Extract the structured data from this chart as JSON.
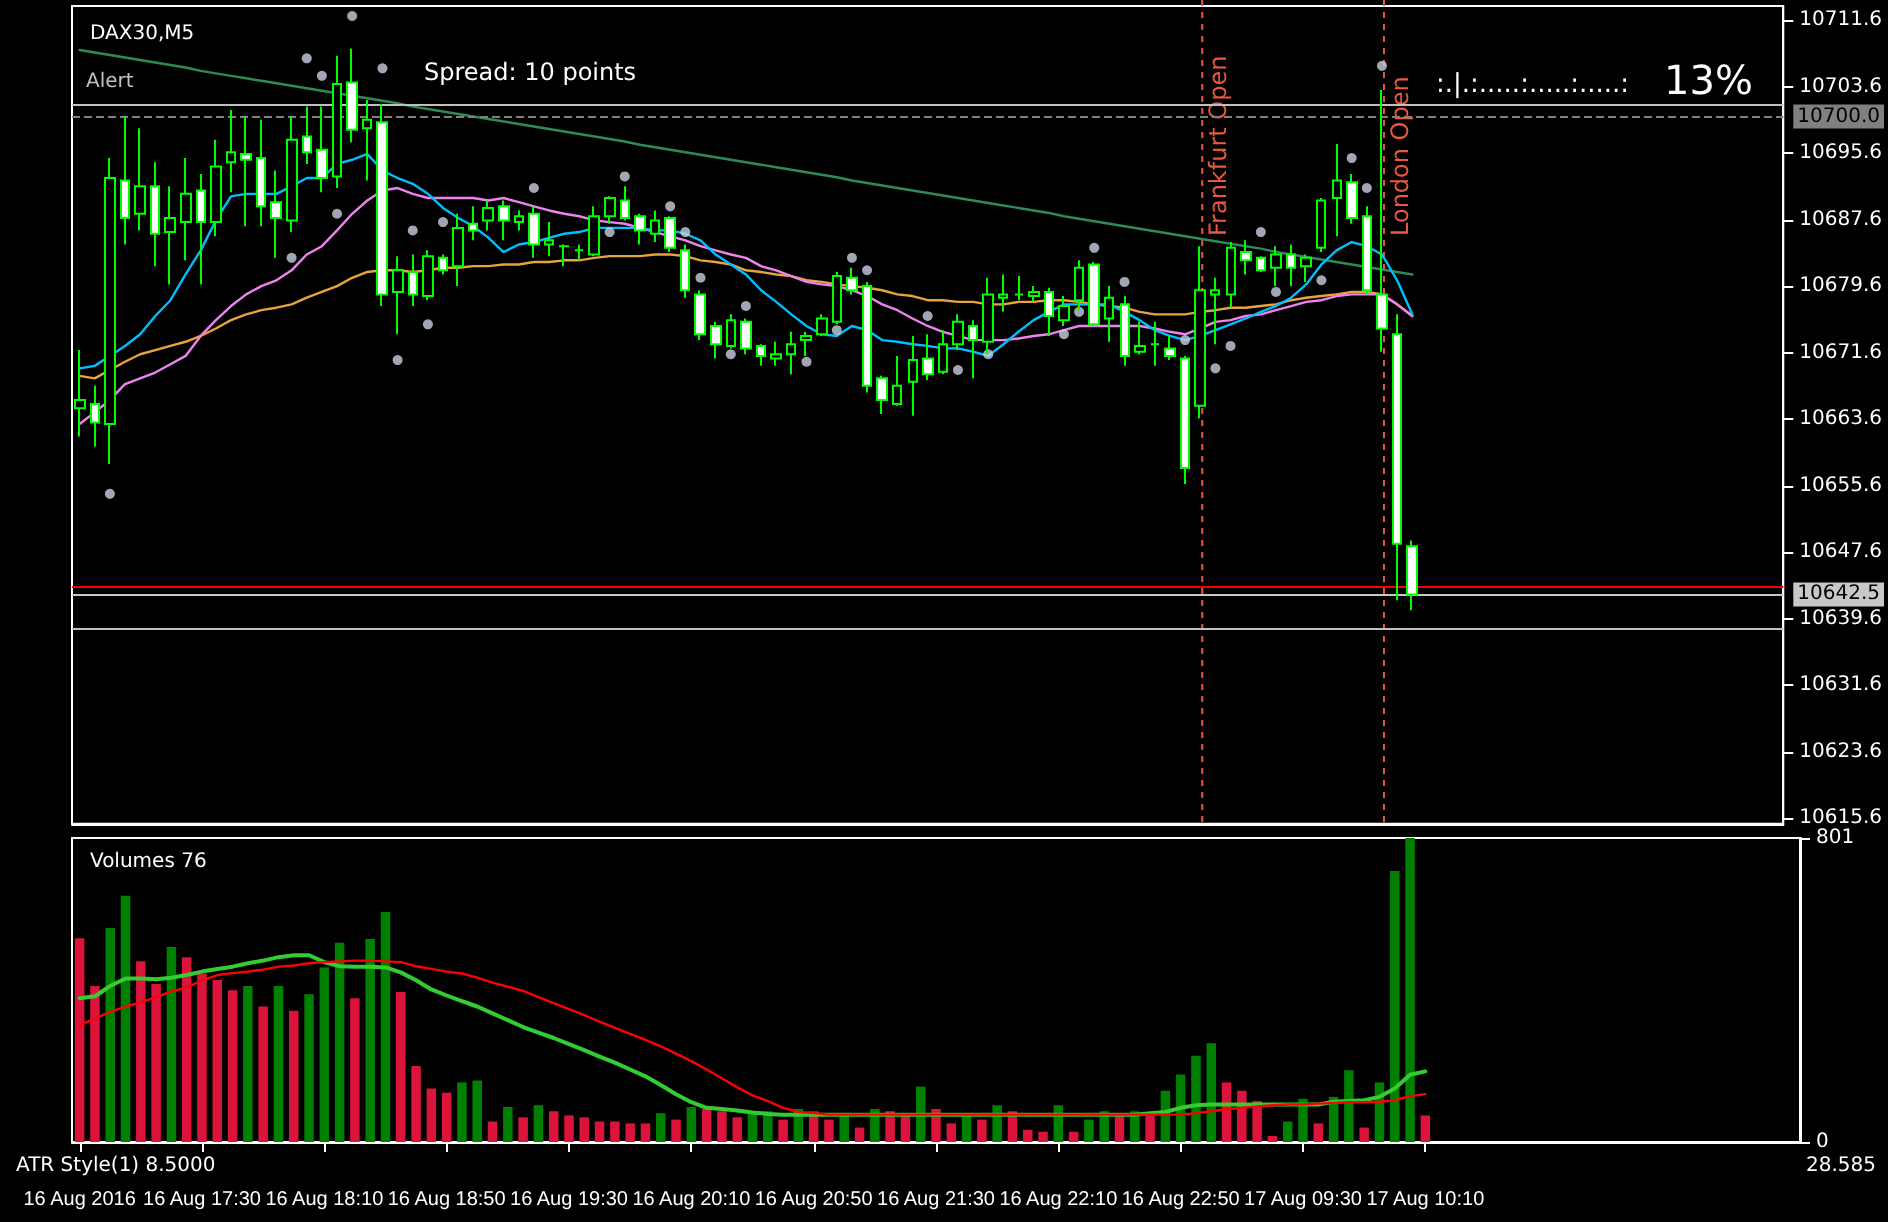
{
  "chart_data": [
    {
      "type": "candlestick",
      "title": "DAX30,M5",
      "color": "#00ff00",
      "tick_labels": "y",
      "categories": [
        null,
        null,
        null,
        null,
        null,
        null,
        null,
        null,
        null,
        null,
        null,
        null,
        null,
        null,
        null,
        null,
        null,
        null,
        null,
        null,
        null,
        null,
        null,
        null,
        null,
        null,
        null,
        null,
        null,
        null,
        null,
        null,
        null,
        null,
        null,
        null,
        null,
        null,
        null,
        null,
        null,
        null,
        null,
        null,
        null,
        null,
        null,
        null,
        null,
        null,
        null,
        null,
        null,
        null,
        null,
        null,
        null,
        null,
        null,
        null,
        null,
        null,
        null,
        null,
        null,
        null,
        null,
        null,
        null,
        null,
        null,
        null,
        null,
        null,
        null,
        null,
        null,
        null,
        null,
        null,
        null,
        null,
        null,
        null,
        null,
        null,
        null,
        null,
        null
      ],
      "ohlc": [
        [
          10664.9,
          10671.9,
          10661.5,
          10665.9
        ],
        [
          10665.4,
          10667.6,
          10660.3,
          10663.2
        ],
        [
          10663.0,
          10695.0,
          10658.2,
          10692.6
        ],
        [
          10692.3,
          10700.0,
          10684.6,
          10687.8
        ],
        [
          10688.3,
          10698.6,
          10686.3,
          10691.6
        ],
        [
          10691.6,
          10694.5,
          10682.0,
          10685.9
        ],
        [
          10686.1,
          10691.6,
          10679.8,
          10687.8
        ],
        [
          10687.3,
          10695.0,
          10682.7,
          10690.7
        ],
        [
          10691.1,
          10693.1,
          10679.8,
          10687.3
        ],
        [
          10687.3,
          10697.2,
          10685.6,
          10694.0
        ],
        [
          10694.5,
          10700.8,
          10690.9,
          10695.7
        ],
        [
          10695.5,
          10700.0,
          10686.8,
          10694.8
        ],
        [
          10695.0,
          10699.6,
          10686.8,
          10689.2
        ],
        [
          10689.7,
          10693.5,
          10683.0,
          10687.8
        ],
        [
          10687.5,
          10700.0,
          10686.1,
          10697.2
        ],
        [
          10697.6,
          10701.2,
          10694.3,
          10695.7
        ],
        [
          10696.0,
          10701.2,
          10690.9,
          10692.6
        ],
        [
          10692.8,
          10707.3,
          10691.4,
          10703.9
        ],
        [
          10704.1,
          10708.2,
          10696.9,
          10698.4
        ],
        [
          10698.6,
          10702.0,
          10692.3,
          10699.6
        ],
        [
          10699.3,
          10701.5,
          10677.2,
          10678.6
        ],
        [
          10678.9,
          10683.2,
          10673.8,
          10681.5
        ],
        [
          10681.3,
          10683.4,
          10677.2,
          10678.6
        ],
        [
          10678.4,
          10683.9,
          10677.9,
          10683.2
        ],
        [
          10683.0,
          10683.4,
          10681.0,
          10681.5
        ],
        [
          10682.0,
          10688.3,
          10679.6,
          10686.6
        ],
        [
          10687.1,
          10689.2,
          10685.1,
          10686.3
        ],
        [
          10687.5,
          10689.9,
          10686.3,
          10689.0
        ],
        [
          10689.2,
          10689.9,
          10685.1,
          10687.5
        ],
        [
          10687.3,
          10688.7,
          10686.3,
          10688.0
        ],
        [
          10688.3,
          10689.2,
          10683.0,
          10684.6
        ],
        [
          10684.6,
          10687.3,
          10683.2,
          10685.1
        ],
        [
          10684.4,
          10684.6,
          10682.0,
          10684.4
        ],
        [
          10683.9,
          10684.6,
          10682.7,
          10683.9
        ],
        [
          10683.4,
          10689.2,
          10683.2,
          10688.0
        ],
        [
          10688.0,
          10690.4,
          10687.1,
          10690.2
        ],
        [
          10689.9,
          10691.6,
          10687.5,
          10687.8
        ],
        [
          10688.0,
          10688.3,
          10684.6,
          10686.3
        ],
        [
          10685.9,
          10688.7,
          10684.9,
          10687.5
        ],
        [
          10687.8,
          10688.0,
          10683.7,
          10684.2
        ],
        [
          10683.9,
          10684.6,
          10678.2,
          10679.1
        ],
        [
          10678.6,
          10679.1,
          10673.1,
          10673.8
        ],
        [
          10674.8,
          10675.3,
          10670.9,
          10672.6
        ],
        [
          10672.4,
          10676.2,
          10672.1,
          10675.5
        ],
        [
          10675.3,
          10675.7,
          10671.4,
          10672.1
        ],
        [
          10672.4,
          10672.6,
          10670.0,
          10671.2
        ],
        [
          10670.9,
          10672.9,
          10670.0,
          10671.4
        ],
        [
          10671.4,
          10674.1,
          10669.0,
          10672.6
        ],
        [
          10673.1,
          10674.1,
          10671.2,
          10673.6
        ],
        [
          10673.8,
          10676.2,
          10673.6,
          10675.7
        ],
        [
          10675.3,
          10681.3,
          10675.0,
          10680.8
        ],
        [
          10680.6,
          10681.8,
          10678.6,
          10679.1
        ],
        [
          10679.6,
          10680.1,
          10666.8,
          10667.6
        ],
        [
          10668.5,
          10668.8,
          10664.2,
          10665.9
        ],
        [
          10665.4,
          10671.2,
          10665.2,
          10667.6
        ],
        [
          10668.1,
          10673.6,
          10664.0,
          10670.7
        ],
        [
          10670.9,
          10673.8,
          10668.3,
          10669.0
        ],
        [
          10669.3,
          10674.3,
          10669.0,
          10672.6
        ],
        [
          10672.6,
          10676.2,
          10671.9,
          10675.3
        ],
        [
          10674.8,
          10675.5,
          10668.5,
          10673.1
        ],
        [
          10672.9,
          10680.6,
          10671.4,
          10678.6
        ],
        [
          10678.2,
          10681.0,
          10676.5,
          10678.6
        ],
        [
          10678.6,
          10680.8,
          10677.9,
          10678.6
        ],
        [
          10678.4,
          10679.6,
          10677.7,
          10678.9
        ],
        [
          10678.9,
          10679.4,
          10673.6,
          10676.0
        ],
        [
          10675.5,
          10678.4,
          10674.8,
          10677.2
        ],
        [
          10677.9,
          10682.7,
          10676.7,
          10681.8
        ],
        [
          10682.2,
          10682.5,
          10674.8,
          10675.0
        ],
        [
          10675.7,
          10679.6,
          10672.9,
          10678.2
        ],
        [
          10677.4,
          10678.4,
          10670.0,
          10671.2
        ],
        [
          10671.7,
          10675.3,
          10671.4,
          10672.4
        ],
        [
          10672.6,
          10675.3,
          10670.0,
          10672.6
        ],
        [
          10672.1,
          10673.6,
          10670.7,
          10671.2
        ],
        [
          10670.9,
          10671.2,
          10655.8,
          10657.7
        ],
        [
          10665.2,
          10684.4,
          10663.7,
          10679.1
        ],
        [
          10678.6,
          10680.6,
          10672.6,
          10679.1
        ],
        [
          10678.6,
          10684.9,
          10677.0,
          10684.2
        ],
        [
          10683.7,
          10685.1,
          10681.0,
          10682.7
        ],
        [
          10683.0,
          10683.2,
          10681.3,
          10681.5
        ],
        [
          10681.8,
          10684.4,
          10679.6,
          10683.4
        ],
        [
          10683.4,
          10684.6,
          10679.6,
          10681.8
        ],
        [
          10682.0,
          10683.4,
          10680.1,
          10683.0
        ],
        [
          10684.2,
          10690.2,
          10683.7,
          10689.9
        ],
        [
          10690.2,
          10696.7,
          10685.6,
          10692.3
        ],
        [
          10692.1,
          10693.1,
          10687.1,
          10687.8
        ],
        [
          10688.0,
          10689.2,
          10678.6,
          10679.1
        ],
        [
          10678.6,
          10703.2,
          10671.7,
          10674.5
        ],
        [
          10673.8,
          10676.2,
          10641.8,
          10648.6
        ],
        [
          10648.3,
          10649.0,
          10640.6,
          10642.5
        ]
      ],
      "series": [
        {
          "type": "line",
          "color": "#2e8b57",
          "values": [
            10708.0,
            10707.7,
            10707.4,
            10707.1,
            10706.8,
            10706.5,
            10706.2,
            10705.9,
            10705.5,
            10705.2,
            10704.9,
            10704.6,
            10704.3,
            10704.0,
            10703.7,
            10703.4,
            10703.1,
            10702.8,
            10702.5,
            10702.2,
            10701.9,
            10701.6,
            10701.2,
            10700.9,
            10700.6,
            10700.3,
            10700.0,
            10699.7,
            10699.4,
            10699.1,
            10698.8,
            10698.5,
            10698.2,
            10697.9,
            10697.6,
            10697.3,
            10697.0,
            10696.6,
            10696.3,
            10696.0,
            10695.7,
            10695.4,
            10695.1,
            10694.8,
            10694.5,
            10694.2,
            10693.9,
            10693.6,
            10693.3,
            10693.0,
            10692.7,
            10692.3,
            10692.0,
            10691.7,
            10691.4,
            10691.1,
            10690.8,
            10690.5,
            10690.2,
            10689.9,
            10689.6,
            10689.3,
            10689.0,
            10688.7,
            10688.4,
            10688.0,
            10687.7,
            10687.4,
            10687.1,
            10686.8,
            10686.5,
            10686.2,
            10685.9,
            10685.6,
            10685.3,
            10685.0,
            10684.7,
            10684.4,
            10684.1,
            10683.7,
            10683.4,
            10683.1,
            10682.8,
            10682.5,
            10682.2,
            10681.9,
            10681.6,
            10681.3,
            10681.0
          ]
        },
        {
          "type": "line",
          "color": "#e8a33c",
          "values": [
            10668.8,
            10668.5,
            10669.5,
            10670.5,
            10671.4,
            10671.9,
            10672.4,
            10672.9,
            10673.6,
            10674.5,
            10675.5,
            10676.2,
            10676.7,
            10677.0,
            10677.4,
            10678.2,
            10678.9,
            10679.6,
            10680.6,
            10681.3,
            10681.5,
            10681.5,
            10681.3,
            10681.5,
            10681.8,
            10681.8,
            10682.0,
            10682.0,
            10682.2,
            10682.2,
            10682.5,
            10682.5,
            10682.7,
            10682.7,
            10683.0,
            10683.2,
            10683.2,
            10683.2,
            10683.4,
            10683.4,
            10683.2,
            10682.7,
            10682.5,
            10682.2,
            10681.5,
            10681.3,
            10681.0,
            10680.8,
            10680.3,
            10680.1,
            10679.8,
            10679.6,
            10679.4,
            10679.1,
            10678.6,
            10678.4,
            10677.9,
            10677.9,
            10677.7,
            10677.7,
            10677.4,
            10677.4,
            10677.7,
            10677.7,
            10677.9,
            10677.9,
            10677.7,
            10677.4,
            10677.2,
            10677.0,
            10676.5,
            10676.2,
            10676.2,
            10676.2,
            10676.5,
            10676.7,
            10677.0,
            10677.0,
            10677.2,
            10677.4,
            10677.9,
            10678.2,
            10678.4,
            10678.6,
            10678.9,
            10678.9,
            10678.6,
            10677.4,
            10676.0
          ]
        },
        {
          "type": "line",
          "color": "#ee82ee",
          "values": [
            10663.0,
            10664.4,
            10665.9,
            10667.8,
            10668.5,
            10669.2,
            10670.2,
            10671.2,
            10673.6,
            10675.5,
            10677.2,
            10678.6,
            10679.6,
            10680.3,
            10681.5,
            10683.4,
            10684.4,
            10686.3,
            10688.3,
            10689.9,
            10691.1,
            10691.4,
            10690.7,
            10690.2,
            10690.2,
            10690.2,
            10690.2,
            10689.9,
            10690.2,
            10689.7,
            10689.2,
            10688.7,
            10688.3,
            10688.0,
            10687.5,
            10687.3,
            10687.1,
            10686.6,
            10686.1,
            10685.6,
            10685.1,
            10684.4,
            10683.9,
            10683.4,
            10683.0,
            10682.0,
            10681.5,
            10680.8,
            10680.1,
            10679.8,
            10679.6,
            10679.1,
            10678.4,
            10677.4,
            10676.7,
            10675.7,
            10674.8,
            10674.1,
            10673.6,
            10673.1,
            10673.1,
            10673.1,
            10673.3,
            10673.6,
            10673.8,
            10674.3,
            10674.8,
            10674.8,
            10674.8,
            10674.8,
            10674.8,
            10674.5,
            10674.1,
            10673.8,
            10674.5,
            10675.3,
            10675.5,
            10676.0,
            10676.2,
            10676.7,
            10677.2,
            10677.7,
            10677.9,
            10678.4,
            10678.6,
            10678.6,
            10678.6,
            10677.4,
            10676.0
          ]
        },
        {
          "type": "line",
          "color": "#00bfff",
          "values": [
            10669.7,
            10670.0,
            10671.2,
            10672.4,
            10673.8,
            10676.0,
            10677.9,
            10681.0,
            10683.9,
            10687.5,
            10690.4,
            10690.7,
            10690.7,
            10690.7,
            10691.6,
            10692.6,
            10692.6,
            10694.3,
            10694.8,
            10695.5,
            10693.5,
            10692.6,
            10691.9,
            10690.7,
            10689.0,
            10687.8,
            10686.8,
            10685.4,
            10683.7,
            10684.6,
            10684.9,
            10685.4,
            10685.9,
            10686.1,
            10686.6,
            10686.6,
            10686.6,
            10686.6,
            10686.3,
            10686.3,
            10685.9,
            10685.1,
            10683.4,
            10682.2,
            10681.0,
            10679.1,
            10677.7,
            10676.2,
            10674.8,
            10673.8,
            10673.6,
            10674.8,
            10674.3,
            10673.1,
            10672.9,
            10672.6,
            10672.4,
            10672.1,
            10672.1,
            10671.7,
            10671.2,
            10672.6,
            10674.1,
            10675.5,
            10676.5,
            10677.4,
            10677.4,
            10677.4,
            10677.4,
            10676.5,
            10675.5,
            10674.3,
            10673.6,
            10673.1,
            10673.6,
            10674.3,
            10675.0,
            10675.7,
            10676.5,
            10677.2,
            10678.2,
            10679.8,
            10682.2,
            10683.9,
            10684.9,
            10684.4,
            10683.4,
            10680.3,
            10676.2
          ]
        },
        {
          "type": "scatter",
          "marker": "circle",
          "color": "#c8d0e0",
          "values": [
            null,
            null,
            10654.6,
            null,
            null,
            null,
            null,
            null,
            null,
            null,
            null,
            null,
            null,
            null,
            10683.0,
            10707.0,
            10704.9,
            10688.3,
            10712.1,
            null,
            10705.8,
            10670.7,
            10686.3,
            10675.0,
            10687.3,
            null,
            null,
            null,
            null,
            null,
            10691.4,
            null,
            null,
            null,
            null,
            10686.1,
            10692.8,
            null,
            null,
            10689.2,
            10686.1,
            10680.6,
            null,
            10671.4,
            10677.2,
            null,
            null,
            null,
            10670.5,
            null,
            10674.3,
            10683.0,
            10681.5,
            null,
            null,
            null,
            10676.0,
            null,
            10669.5,
            null,
            10671.4,
            null,
            null,
            null,
            null,
            10673.8,
            10676.5,
            10684.2,
            null,
            10680.1,
            null,
            null,
            null,
            10673.1,
            null,
            10669.7,
            10672.4,
            null,
            10686.1,
            10678.9,
            null,
            null,
            10680.3,
            null,
            10695.0,
            10691.4,
            10706.1,
            null,
            null
          ]
        }
      ],
      "ylim": [
        10614.9,
        10713.3
      ],
      "yticks": [
        10615.6,
        10623.6,
        10631.6,
        10639.6,
        10647.6,
        10655.6,
        10663.6,
        10671.6,
        10679.6,
        10687.6,
        10695.6,
        10703.6,
        10711.6
      ],
      "ref_lines": [
        {
          "axis": "y",
          "value": 10701.5,
          "label": "Alert",
          "color": "#c0c0c0",
          "line_style": "solid"
        },
        {
          "axis": "y",
          "value": 10700.0,
          "label": "10700.0",
          "color": "#808080",
          "line_style": "dashed"
        },
        {
          "axis": "y",
          "value": 10643.5,
          "color": "#ff0000",
          "line_style": "solid"
        },
        {
          "axis": "y",
          "value": 10642.5,
          "label": "10642.5",
          "color": "#c8c8c8",
          "line_style": "solid"
        },
        {
          "axis": "y",
          "value": 10638.5,
          "color": "#c0c0c0",
          "line_style": "solid"
        }
      ],
      "annotations": [
        "Spread: 10 points",
        "Frankfurt Open",
        "London Open",
        ":.|.:.....:.....:.....:",
        "13%"
      ]
    },
    {
      "type": "bar",
      "title": "Volumes 76",
      "categories": [
        "16 Aug 2016",
        null,
        null,
        null,
        null,
        null,
        null,
        null,
        "16 Aug 17:30",
        null,
        null,
        null,
        null,
        null,
        null,
        null,
        "16 Aug 18:10",
        null,
        null,
        null,
        null,
        null,
        null,
        null,
        "16 Aug 18:50",
        null,
        null,
        null,
        null,
        null,
        null,
        null,
        "16 Aug 19:30",
        null,
        null,
        null,
        null,
        null,
        null,
        null,
        "16 Aug 20:10",
        null,
        null,
        null,
        null,
        null,
        null,
        null,
        "16 Aug 20:50",
        null,
        null,
        null,
        null,
        null,
        null,
        null,
        "16 Aug 21:30",
        null,
        null,
        null,
        null,
        null,
        null,
        null,
        "16 Aug 22:10",
        null,
        null,
        null,
        null,
        null,
        null,
        null,
        "16 Aug 22:50",
        null,
        null,
        null,
        null,
        null,
        null,
        null,
        "17 Aug 09:30",
        null,
        null,
        null,
        null,
        null,
        null,
        null,
        "17 Aug 10:10"
      ],
      "series": [
        {
          "values": [
            537,
            411,
            564,
            649,
            476,
            416,
            514,
            487,
            444,
            427,
            400,
            411,
            357,
            411,
            346,
            389,
            460,
            525,
            379,
            535,
            606,
            395,
            200,
            141,
            130,
            157,
            162,
            54,
            92,
            65,
            97,
            81,
            70,
            65,
            54,
            54,
            49,
            49,
            76,
            59,
            92,
            87,
            81,
            65,
            76,
            81,
            59,
            87,
            81,
            59,
            70,
            38,
            87,
            81,
            70,
            146,
            87,
            49,
            70,
            59,
            97,
            81,
            32,
            27,
            97,
            27,
            59,
            81,
            70,
            81,
            70,
            135,
            178,
            227,
            260,
            157,
            135,
            108,
            16,
            54,
            114,
            49,
            119,
            189,
            38,
            157,
            714,
            801,
            70
          ],
          "colors": [
            "#dc143c",
            "#dc143c",
            "#008000",
            "#008000",
            "#dc143c",
            "#dc143c",
            "#008000",
            "#dc143c",
            "#dc143c",
            "#dc143c",
            "#dc143c",
            "#008000",
            "#dc143c",
            "#008000",
            "#dc143c",
            "#008000",
            "#008000",
            "#008000",
            "#dc143c",
            "#008000",
            "#008000",
            "#dc143c",
            "#dc143c",
            "#dc143c",
            "#dc143c",
            "#008000",
            "#008000",
            "#dc143c",
            "#008000",
            "#dc143c",
            "#008000",
            "#dc143c",
            "#dc143c",
            "#dc143c",
            "#dc143c",
            "#dc143c",
            "#dc143c",
            "#dc143c",
            "#008000",
            "#dc143c",
            "#008000",
            "#dc143c",
            "#dc143c",
            "#dc143c",
            "#008000",
            "#008000",
            "#dc143c",
            "#008000",
            "#dc143c",
            "#dc143c",
            "#008000",
            "#dc143c",
            "#008000",
            "#dc143c",
            "#dc143c",
            "#008000",
            "#dc143c",
            "#dc143c",
            "#008000",
            "#dc143c",
            "#008000",
            "#dc143c",
            "#dc143c",
            "#dc143c",
            "#008000",
            "#dc143c",
            "#008000",
            "#008000",
            "#dc143c",
            "#008000",
            "#dc143c",
            "#008000",
            "#008000",
            "#008000",
            "#008000",
            "#dc143c",
            "#dc143c",
            "#dc143c",
            "#dc143c",
            "#008000",
            "#008000",
            "#dc143c",
            "#008000",
            "#008000",
            "#dc143c",
            "#008000",
            "#008000",
            "#008000",
            "#dc143c"
          ]
        },
        {
          "type": "line",
          "color": "#32cd32",
          "values": [
            379,
            384,
            411,
            431,
            431,
            429,
            433,
            440,
            449,
            456,
            462,
            471,
            478,
            487,
            492,
            492,
            474,
            463,
            462,
            462,
            460,
            447,
            426,
            402,
            386,
            371,
            357,
            339,
            321,
            303,
            288,
            274,
            258,
            242,
            225,
            209,
            191,
            173,
            150,
            126,
            105,
            90,
            87,
            83,
            78,
            74,
            72,
            72,
            72,
            72,
            72,
            72,
            72,
            72,
            72,
            72,
            72,
            72,
            72,
            72,
            72,
            72,
            72,
            72,
            72,
            72,
            72,
            72,
            72,
            72,
            76,
            79,
            90,
            97,
            99,
            99,
            99,
            99,
            99,
            99,
            99,
            99,
            106,
            108,
            110,
            119,
            141,
            177,
            186
          ]
        },
        {
          "type": "line",
          "color": "#ff0000",
          "values": [
            308,
            325,
            343,
            357,
            368,
            382,
            397,
            407,
            426,
            440,
            445,
            449,
            454,
            462,
            465,
            471,
            474,
            476,
            478,
            478,
            476,
            474,
            463,
            456,
            449,
            444,
            433,
            420,
            409,
            398,
            382,
            366,
            350,
            334,
            317,
            301,
            285,
            269,
            252,
            233,
            213,
            191,
            168,
            144,
            123,
            108,
            90,
            79,
            76,
            72,
            72,
            72,
            72,
            72,
            72,
            72,
            72,
            72,
            72,
            72,
            72,
            72,
            72,
            72,
            72,
            72,
            72,
            72,
            72,
            72,
            72,
            72,
            72,
            76,
            81,
            87,
            90,
            94,
            97,
            99,
            99,
            101,
            103,
            105,
            105,
            106,
            110,
            121,
            126
          ]
        }
      ],
      "ylim": [
        0,
        801
      ],
      "yticks": [
        0,
        801
      ],
      "annotations": [
        "ATR Style(1) 8.5000",
        "28.585"
      ]
    }
  ]
}
